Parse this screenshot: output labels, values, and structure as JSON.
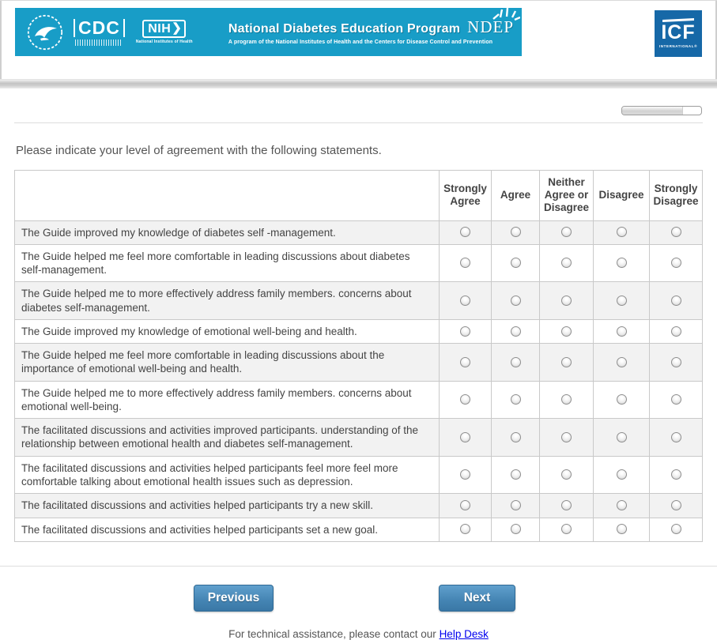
{
  "header": {
    "hhs_logo": "HHS",
    "cdc_logo": "CDC",
    "nih_logo": "NIH",
    "nih_arrow": "❯",
    "nih_logo_sub": "National Institutes of Health",
    "program_title": "National Diabetes Education Program",
    "program_acronym": "NDEP",
    "program_subtitle": "A program of the National Institutes of Health and the Centers for Disease Control and Prevention",
    "banner_color": "#189dc7",
    "icf": {
      "name": "ICF",
      "sub": "INTERNATIONAL®",
      "bg_color": "#1668a7"
    }
  },
  "progress": {
    "percent": 77
  },
  "main": {
    "prompt": "Please indicate your level of agreement with the following statements."
  },
  "table": {
    "columns": [
      "Strongly Agree",
      "Agree",
      "Neither Agree or Disagree",
      "Disagree",
      "Strongly Disagree"
    ],
    "rows": [
      "The Guide improved my knowledge of diabetes self -management.",
      "The Guide helped me feel more comfortable in leading discussions about diabetes self-management.",
      "The Guide helped me to more effectively address family members. concerns about diabetes self-management.",
      "The Guide improved my knowledge of emotional well-being and health.",
      "The Guide helped me feel more comfortable in leading discussions about the importance of emotional well-being and health.",
      "The Guide helped me to more effectively address family members. concerns about emotional well-being.",
      "The facilitated discussions and activities improved participants. understanding of the relationship between emotional health and diabetes self-management.",
      "The facilitated discussions and activities helped participants feel more feel more comfortable talking about emotional health issues such as depression.",
      "The facilitated discussions and activities helped participants try a new skill.",
      "The facilitated discussions and activities helped participants set a new goal."
    ]
  },
  "nav": {
    "previous": "Previous",
    "next": "Next"
  },
  "footer": {
    "text": "For technical assistance, please contact our",
    "link": "Help Desk"
  }
}
